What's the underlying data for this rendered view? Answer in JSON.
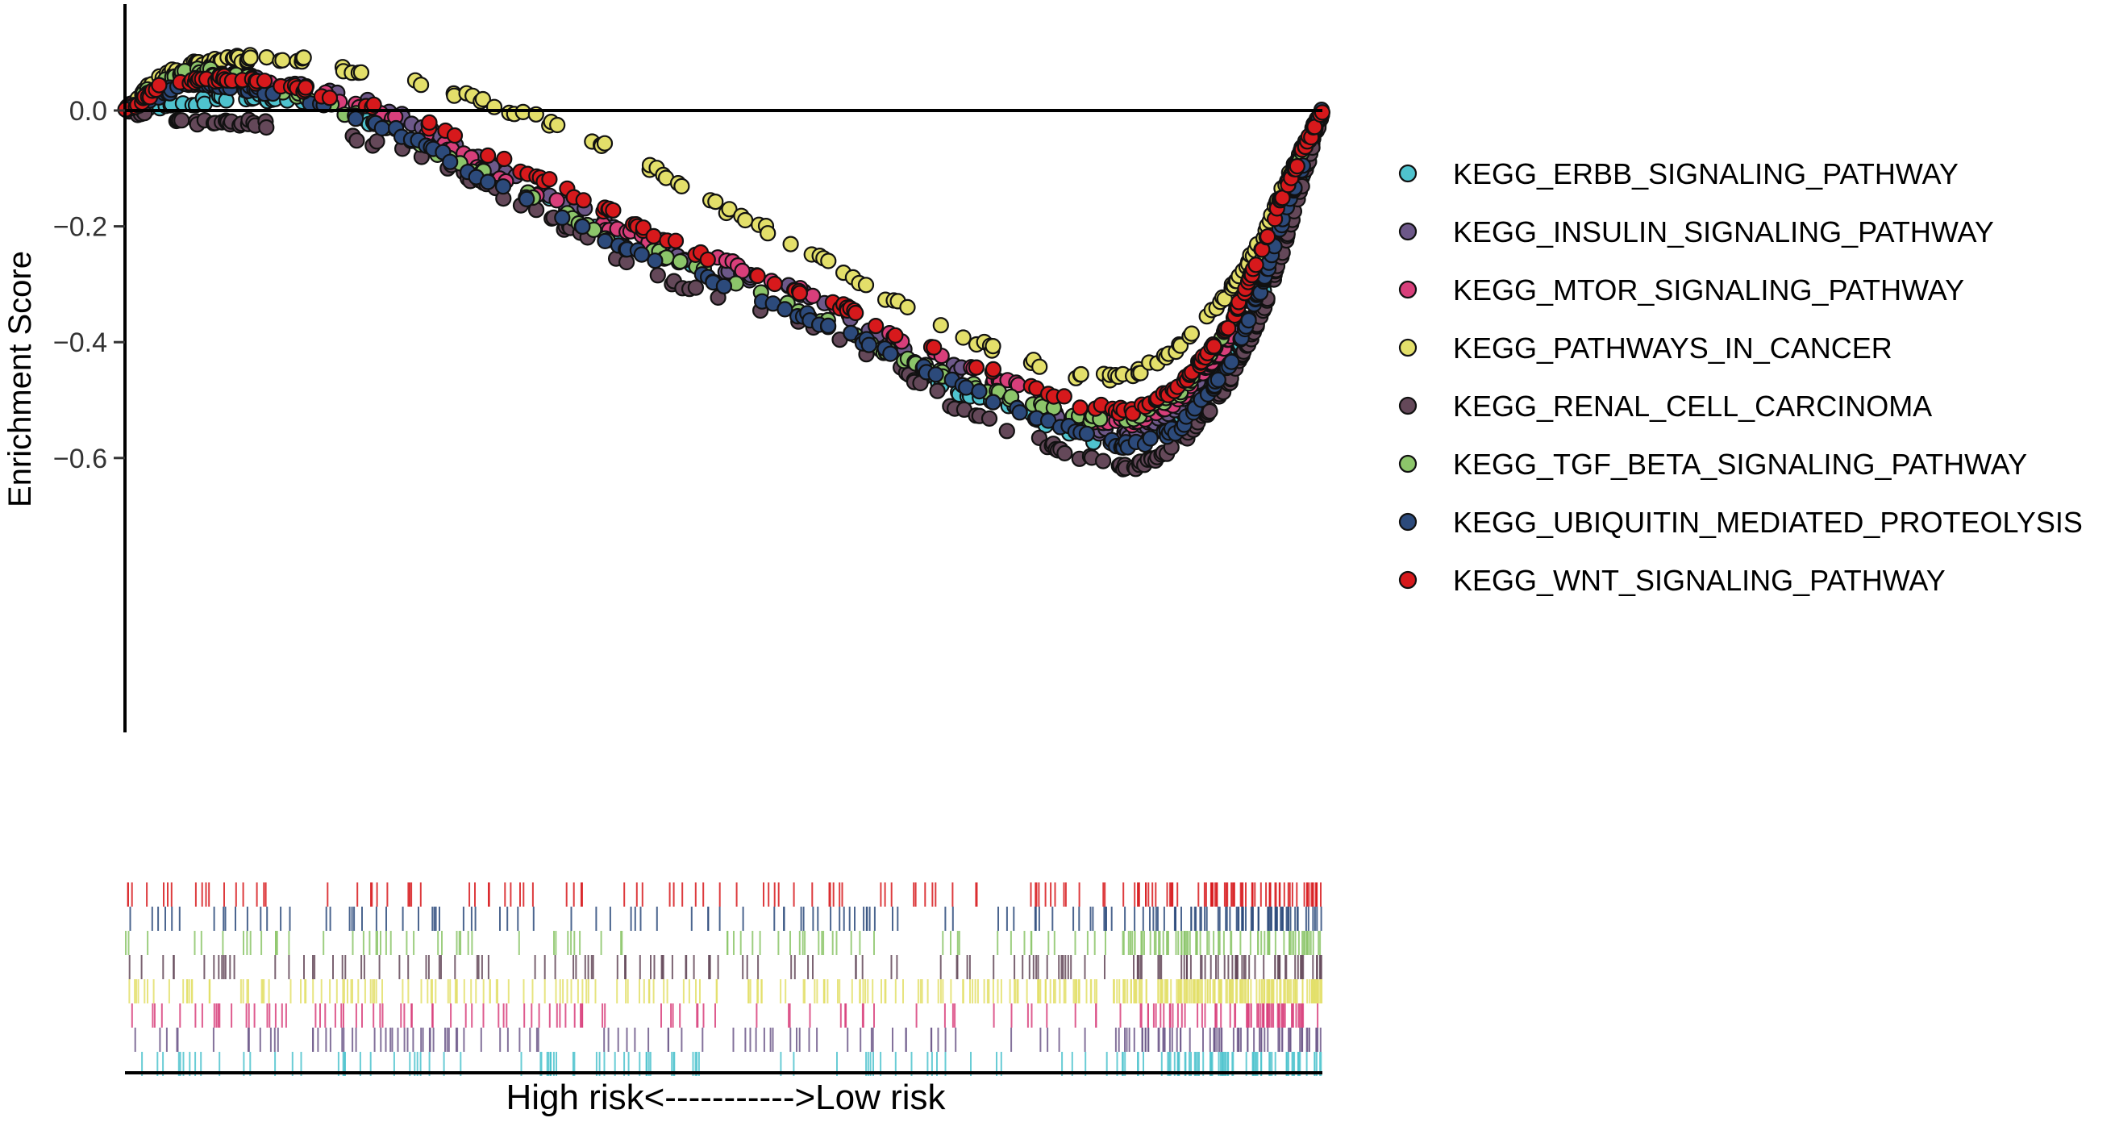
{
  "chart_data": {
    "type": "scatter",
    "title": "",
    "ylabel": "Enrichment Score",
    "xlabel": "High risk<----------->Low risk",
    "ylim": [
      -0.64,
      0.11
    ],
    "yticks": [
      {
        "value": 0.0,
        "label": "0.0"
      },
      {
        "value": -0.2,
        "label": "−0.2"
      },
      {
        "value": -0.4,
        "label": "−0.4"
      },
      {
        "value": -0.6,
        "label": "−0.6"
      }
    ],
    "x_range": [
      0,
      1
    ],
    "grid": false,
    "legend_position": "right",
    "series": [
      {
        "name": "KEGG_ERBB_SIGNALING_PATHWAY",
        "color": "#4FC3CE",
        "points": [
          [
            0.0,
            0.0
          ],
          [
            0.03,
            0.01
          ],
          [
            0.06,
            0.015
          ],
          [
            0.1,
            0.025
          ],
          [
            0.15,
            0.015
          ],
          [
            0.2,
            -0.015
          ],
          [
            0.25,
            -0.05
          ],
          [
            0.3,
            -0.09
          ],
          [
            0.35,
            -0.15
          ],
          [
            0.4,
            -0.21
          ],
          [
            0.45,
            -0.25
          ],
          [
            0.5,
            -0.28
          ],
          [
            0.55,
            -0.33
          ],
          [
            0.6,
            -0.37
          ],
          [
            0.65,
            -0.44
          ],
          [
            0.7,
            -0.49
          ],
          [
            0.75,
            -0.52
          ],
          [
            0.8,
            -0.57
          ],
          [
            0.84,
            -0.57
          ],
          [
            0.88,
            -0.53
          ],
          [
            0.92,
            -0.45
          ],
          [
            0.95,
            -0.32
          ],
          [
            0.97,
            -0.2
          ],
          [
            1.0,
            0.0
          ]
        ]
      },
      {
        "name": "KEGG_INSULIN_SIGNALING_PATHWAY",
        "color": "#6D5889",
        "points": [
          [
            0.0,
            0.0
          ],
          [
            0.03,
            0.04
          ],
          [
            0.06,
            0.055
          ],
          [
            0.1,
            0.06
          ],
          [
            0.14,
            0.045
          ],
          [
            0.18,
            0.03
          ],
          [
            0.22,
            0.0
          ],
          [
            0.26,
            -0.04
          ],
          [
            0.3,
            -0.09
          ],
          [
            0.35,
            -0.14
          ],
          [
            0.4,
            -0.19
          ],
          [
            0.45,
            -0.24
          ],
          [
            0.5,
            -0.28
          ],
          [
            0.55,
            -0.3
          ],
          [
            0.6,
            -0.35
          ],
          [
            0.65,
            -0.41
          ],
          [
            0.7,
            -0.45
          ],
          [
            0.75,
            -0.49
          ],
          [
            0.8,
            -0.55
          ],
          [
            0.84,
            -0.56
          ],
          [
            0.88,
            -0.51
          ],
          [
            0.92,
            -0.4
          ],
          [
            0.95,
            -0.28
          ],
          [
            0.97,
            -0.17
          ],
          [
            1.0,
            0.0
          ]
        ]
      },
      {
        "name": "KEGG_MTOR_SIGNALING_PATHWAY",
        "color": "#D83F7B",
        "points": [
          [
            0.0,
            0.0
          ],
          [
            0.03,
            0.035
          ],
          [
            0.06,
            0.05
          ],
          [
            0.1,
            0.05
          ],
          [
            0.14,
            0.04
          ],
          [
            0.18,
            0.02
          ],
          [
            0.22,
            -0.01
          ],
          [
            0.26,
            -0.05
          ],
          [
            0.3,
            -0.1
          ],
          [
            0.35,
            -0.15
          ],
          [
            0.4,
            -0.2
          ],
          [
            0.45,
            -0.23
          ],
          [
            0.5,
            -0.26
          ],
          [
            0.55,
            -0.3
          ],
          [
            0.6,
            -0.34
          ],
          [
            0.65,
            -0.4
          ],
          [
            0.7,
            -0.44
          ],
          [
            0.75,
            -0.48
          ],
          [
            0.8,
            -0.53
          ],
          [
            0.84,
            -0.54
          ],
          [
            0.88,
            -0.5
          ],
          [
            0.92,
            -0.4
          ],
          [
            0.95,
            -0.26
          ],
          [
            0.97,
            -0.15
          ],
          [
            1.0,
            0.0
          ]
        ]
      },
      {
        "name": "KEGG_PATHWAYS_IN_CANCER",
        "color": "#E3DF6A",
        "points": [
          [
            0.0,
            0.0
          ],
          [
            0.03,
            0.06
          ],
          [
            0.06,
            0.08
          ],
          [
            0.1,
            0.09
          ],
          [
            0.14,
            0.09
          ],
          [
            0.18,
            0.075
          ],
          [
            0.22,
            0.055
          ],
          [
            0.26,
            0.04
          ],
          [
            0.3,
            0.015
          ],
          [
            0.34,
            -0.01
          ],
          [
            0.38,
            -0.04
          ],
          [
            0.42,
            -0.08
          ],
          [
            0.46,
            -0.12
          ],
          [
            0.5,
            -0.17
          ],
          [
            0.55,
            -0.22
          ],
          [
            0.6,
            -0.28
          ],
          [
            0.65,
            -0.34
          ],
          [
            0.7,
            -0.39
          ],
          [
            0.75,
            -0.43
          ],
          [
            0.8,
            -0.46
          ],
          [
            0.84,
            -0.46
          ],
          [
            0.88,
            -0.41
          ],
          [
            0.92,
            -0.32
          ],
          [
            0.95,
            -0.22
          ],
          [
            0.97,
            -0.12
          ],
          [
            1.0,
            0.0
          ]
        ]
      },
      {
        "name": "KEGG_RENAL_CELL_CARCINOMA",
        "color": "#644859",
        "points": [
          [
            0.0,
            0.0
          ],
          [
            0.03,
            -0.01
          ],
          [
            0.06,
            -0.02
          ],
          [
            0.1,
            -0.02
          ],
          [
            0.14,
            -0.03
          ],
          [
            0.18,
            -0.045
          ],
          [
            0.22,
            -0.06
          ],
          [
            0.26,
            -0.085
          ],
          [
            0.3,
            -0.13
          ],
          [
            0.35,
            -0.18
          ],
          [
            0.4,
            -0.24
          ],
          [
            0.45,
            -0.29
          ],
          [
            0.5,
            -0.33
          ],
          [
            0.55,
            -0.36
          ],
          [
            0.6,
            -0.4
          ],
          [
            0.65,
            -0.45
          ],
          [
            0.7,
            -0.52
          ],
          [
            0.75,
            -0.56
          ],
          [
            0.8,
            -0.6
          ],
          [
            0.84,
            -0.62
          ],
          [
            0.88,
            -0.58
          ],
          [
            0.92,
            -0.48
          ],
          [
            0.95,
            -0.35
          ],
          [
            0.97,
            -0.22
          ],
          [
            1.0,
            0.0
          ]
        ]
      },
      {
        "name": "KEGG_TGF_BETA_SIGNALING_PATHWAY",
        "color": "#8CC56A",
        "points": [
          [
            0.0,
            0.0
          ],
          [
            0.03,
            0.05
          ],
          [
            0.06,
            0.07
          ],
          [
            0.1,
            0.055
          ],
          [
            0.14,
            0.03
          ],
          [
            0.18,
            0.0
          ],
          [
            0.22,
            -0.03
          ],
          [
            0.26,
            -0.07
          ],
          [
            0.3,
            -0.11
          ],
          [
            0.35,
            -0.16
          ],
          [
            0.4,
            -0.22
          ],
          [
            0.45,
            -0.25
          ],
          [
            0.5,
            -0.29
          ],
          [
            0.55,
            -0.33
          ],
          [
            0.6,
            -0.38
          ],
          [
            0.65,
            -0.43
          ],
          [
            0.7,
            -0.47
          ],
          [
            0.75,
            -0.5
          ],
          [
            0.8,
            -0.53
          ],
          [
            0.84,
            -0.53
          ],
          [
            0.88,
            -0.49
          ],
          [
            0.92,
            -0.38
          ],
          [
            0.95,
            -0.25
          ],
          [
            0.97,
            -0.13
          ],
          [
            1.0,
            0.0
          ]
        ]
      },
      {
        "name": "KEGG_UBIQUITIN_MEDIATED_PROTEOLYSIS",
        "color": "#2C4A7B",
        "points": [
          [
            0.0,
            0.0
          ],
          [
            0.03,
            0.03
          ],
          [
            0.06,
            0.05
          ],
          [
            0.1,
            0.04
          ],
          [
            0.14,
            0.025
          ],
          [
            0.18,
            0.0
          ],
          [
            0.22,
            -0.03
          ],
          [
            0.26,
            -0.07
          ],
          [
            0.3,
            -0.12
          ],
          [
            0.35,
            -0.17
          ],
          [
            0.4,
            -0.22
          ],
          [
            0.45,
            -0.26
          ],
          [
            0.5,
            -0.3
          ],
          [
            0.55,
            -0.34
          ],
          [
            0.6,
            -0.38
          ],
          [
            0.65,
            -0.43
          ],
          [
            0.7,
            -0.48
          ],
          [
            0.75,
            -0.52
          ],
          [
            0.8,
            -0.56
          ],
          [
            0.84,
            -0.58
          ],
          [
            0.88,
            -0.55
          ],
          [
            0.92,
            -0.45
          ],
          [
            0.95,
            -0.3
          ],
          [
            0.97,
            -0.17
          ],
          [
            1.0,
            0.0
          ]
        ]
      },
      {
        "name": "KEGG_WNT_SIGNALING_PATHWAY",
        "color": "#D7191C",
        "points": [
          [
            0.0,
            0.0
          ],
          [
            0.03,
            0.04
          ],
          [
            0.06,
            0.055
          ],
          [
            0.1,
            0.055
          ],
          [
            0.14,
            0.04
          ],
          [
            0.18,
            0.02
          ],
          [
            0.22,
            0.0
          ],
          [
            0.26,
            -0.03
          ],
          [
            0.3,
            -0.07
          ],
          [
            0.35,
            -0.12
          ],
          [
            0.4,
            -0.17
          ],
          [
            0.45,
            -0.22
          ],
          [
            0.5,
            -0.27
          ],
          [
            0.55,
            -0.3
          ],
          [
            0.6,
            -0.34
          ],
          [
            0.65,
            -0.39
          ],
          [
            0.7,
            -0.43
          ],
          [
            0.75,
            -0.47
          ],
          [
            0.8,
            -0.51
          ],
          [
            0.84,
            -0.52
          ],
          [
            0.88,
            -0.48
          ],
          [
            0.92,
            -0.38
          ],
          [
            0.95,
            -0.24
          ],
          [
            0.97,
            -0.13
          ],
          [
            1.0,
            0.0
          ]
        ]
      }
    ]
  }
}
